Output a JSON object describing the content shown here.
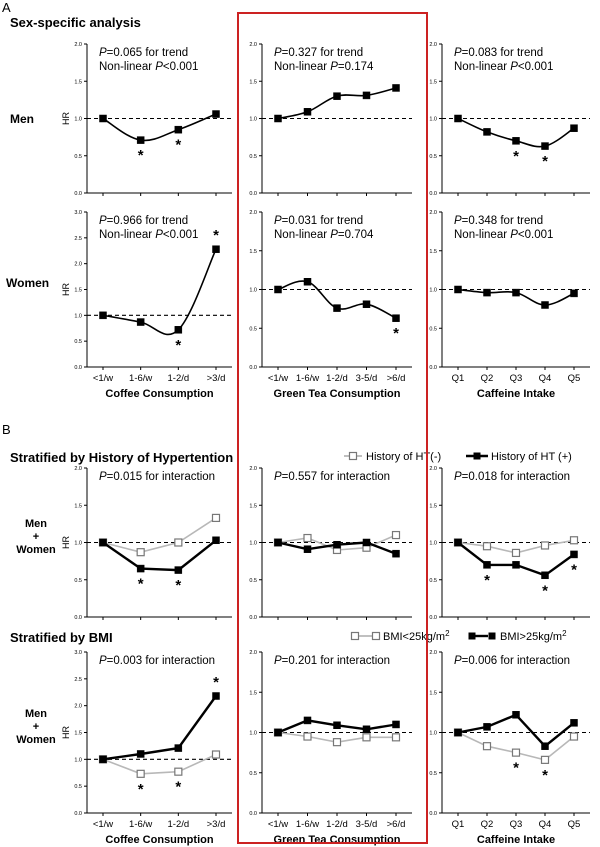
{
  "figure": {
    "panel_a_label": "A",
    "panel_b_label": "B",
    "section_a_title": "Sex-specific analysis",
    "section_b1_title": "Stratified by History of Hypertention",
    "section_b2_title": "Stratified by BMI",
    "row_labels": {
      "men": "Men",
      "women": "Women",
      "men_women_line1": "Men",
      "men_women_line2": "+",
      "men_women_line3": "Women"
    },
    "y_label": "HR",
    "y_ticks": [
      "0.0",
      "0.5",
      "1.0",
      "1.5",
      "2.0"
    ],
    "y_ticks_tall": [
      "0.0",
      "0.5",
      "1.0",
      "1.5",
      "2.0",
      "2.5",
      "3.0"
    ],
    "x_titles": {
      "coffee": "Coffee Consumption",
      "tea": "Green Tea Consumption",
      "caffeine": "Caffeine Intake"
    },
    "x_ticks": {
      "coffee": [
        "<1/w",
        "1-6/w",
        "1-2/d",
        ">3/d"
      ],
      "tea": [
        "<1/w",
        "1-6/w",
        "1-2/d",
        "3-5/d",
        ">6/d"
      ],
      "caffeine": [
        "Q1",
        "Q2",
        "Q3",
        "Q4",
        "Q5"
      ]
    },
    "legend_ht": {
      "neg": "History of HT(-)",
      "pos": "History of HT (+)"
    },
    "legend_bmi": {
      "low_prefix": "BMI<25kg/m",
      "high_prefix": "BMI>25kg/m",
      "sup": "2"
    },
    "star": "*"
  },
  "chart_data": [
    {
      "id": "a-men-coffee",
      "type": "line",
      "section": "A",
      "row": "Men",
      "x_key": "coffee",
      "ylim": [
        0,
        2
      ],
      "annotation": {
        "p_prefix": "P",
        "p_value": "=0.065 for trend",
        "nl_text": "Non-linear ",
        "nl_p": "P",
        "nl_value": "<0.001"
      },
      "categories": [
        "<1/w",
        "1-6/w",
        "1-2/d",
        ">3/d"
      ],
      "series": [
        {
          "values": [
            1.0,
            0.71,
            0.85,
            1.06
          ],
          "marker": "filled-square",
          "curve": "smooth",
          "stars": [
            1,
            2
          ]
        }
      ]
    },
    {
      "id": "a-men-tea",
      "type": "line",
      "section": "A",
      "row": "Men",
      "x_key": "tea",
      "ylim": [
        0,
        2
      ],
      "annotation": {
        "p_prefix": "P",
        "p_value": "=0.327 for trend",
        "nl_text": "Non-linear ",
        "nl_p": "P",
        "nl_value": "=0.174"
      },
      "categories": [
        "<1/w",
        "1-6/w",
        "1-2/d",
        "3-5/d",
        ">6/d"
      ],
      "series": [
        {
          "values": [
            1.0,
            1.09,
            1.3,
            1.31,
            1.41
          ],
          "marker": "filled-square",
          "curve": "smooth",
          "stars": []
        }
      ]
    },
    {
      "id": "a-men-caffeine",
      "type": "line",
      "section": "A",
      "row": "Men",
      "x_key": "caffeine",
      "ylim": [
        0,
        2
      ],
      "annotation": {
        "p_prefix": "P",
        "p_value": "=0.083 for trend",
        "nl_text": "Non-linear ",
        "nl_p": "P",
        "nl_value": "<0.001"
      },
      "categories": [
        "Q1",
        "Q2",
        "Q3",
        "Q4",
        "Q5"
      ],
      "series": [
        {
          "values": [
            1.0,
            0.82,
            0.7,
            0.63,
            0.87
          ],
          "marker": "filled-square",
          "curve": "smooth",
          "stars": [
            2,
            3
          ]
        }
      ]
    },
    {
      "id": "a-women-coffee",
      "type": "line",
      "section": "A",
      "row": "Women",
      "x_key": "coffee",
      "ylim": [
        0,
        3
      ],
      "annotation": {
        "p_prefix": "P",
        "p_value": "=0.966 for trend",
        "nl_text": "Non-linear ",
        "nl_p": "P",
        "nl_value": "<0.001"
      },
      "categories": [
        "<1/w",
        "1-6/w",
        "1-2/d",
        ">3/d"
      ],
      "series": [
        {
          "values": [
            1.0,
            0.87,
            0.72,
            2.28
          ],
          "marker": "filled-square",
          "curve": "smooth",
          "stars": [
            2,
            3
          ]
        }
      ]
    },
    {
      "id": "a-women-tea",
      "type": "line",
      "section": "A",
      "row": "Women",
      "x_key": "tea",
      "ylim": [
        0,
        2
      ],
      "annotation": {
        "p_prefix": "P",
        "p_value": "=0.031 for trend",
        "nl_text": "Non-linear ",
        "nl_p": "P",
        "nl_value": "=0.704"
      },
      "categories": [
        "<1/w",
        "1-6/w",
        "1-2/d",
        "3-5/d",
        ">6/d"
      ],
      "series": [
        {
          "values": [
            1.0,
            1.1,
            0.76,
            0.81,
            0.63
          ],
          "marker": "filled-square",
          "curve": "smooth",
          "stars": [
            4
          ]
        }
      ]
    },
    {
      "id": "a-women-caffeine",
      "type": "line",
      "section": "A",
      "row": "Women",
      "x_key": "caffeine",
      "ylim": [
        0,
        2
      ],
      "annotation": {
        "p_prefix": "P",
        "p_value": "=0.348 for trend",
        "nl_text": "Non-linear ",
        "nl_p": "P",
        "nl_value": "<0.001"
      },
      "categories": [
        "Q1",
        "Q2",
        "Q3",
        "Q4",
        "Q5"
      ],
      "series": [
        {
          "values": [
            1.0,
            0.96,
            0.96,
            0.8,
            0.95
          ],
          "marker": "filled-square",
          "curve": "smooth",
          "stars": []
        }
      ]
    },
    {
      "id": "b-ht-coffee",
      "type": "line",
      "section": "B",
      "row": "Men + Women",
      "x_key": "coffee",
      "ylim": [
        0,
        2
      ],
      "annotation": {
        "p_prefix": "P",
        "p_value": "=0.015 for interaction"
      },
      "categories": [
        "<1/w",
        "1-6/w",
        "1-2/d",
        ">3/d"
      ],
      "series": [
        {
          "values": [
            1.0,
            0.87,
            1.0,
            1.33
          ],
          "marker": "open-square",
          "stars": []
        },
        {
          "values": [
            1.0,
            0.65,
            0.63,
            1.03
          ],
          "marker": "filled-square",
          "stars": [
            1,
            2
          ]
        }
      ]
    },
    {
      "id": "b-ht-tea",
      "type": "line",
      "section": "B",
      "row": "Men + Women",
      "x_key": "tea",
      "ylim": [
        0,
        2
      ],
      "annotation": {
        "p_prefix": "P",
        "p_value": "=0.557 for interaction"
      },
      "categories": [
        "<1/w",
        "1-6/w",
        "1-2/d",
        "3-5/d",
        ">6/d"
      ],
      "series": [
        {
          "values": [
            1.0,
            1.06,
            0.9,
            0.93,
            1.1
          ],
          "marker": "open-square",
          "stars": []
        },
        {
          "values": [
            1.0,
            0.91,
            0.97,
            1.0,
            0.85
          ],
          "marker": "filled-square",
          "stars": []
        }
      ]
    },
    {
      "id": "b-ht-caffeine",
      "type": "line",
      "section": "B",
      "row": "Men + Women",
      "x_key": "caffeine",
      "ylim": [
        0,
        2
      ],
      "annotation": {
        "p_prefix": "P",
        "p_value": "=0.018 for interaction"
      },
      "categories": [
        "Q1",
        "Q2",
        "Q3",
        "Q4",
        "Q5"
      ],
      "series": [
        {
          "values": [
            1.0,
            0.95,
            0.86,
            0.96,
            1.03
          ],
          "marker": "open-square",
          "stars": []
        },
        {
          "values": [
            1.0,
            0.7,
            0.7,
            0.56,
            0.84
          ],
          "marker": "filled-square",
          "stars": [
            1,
            3,
            4
          ]
        }
      ]
    },
    {
      "id": "b-bmi-coffee",
      "type": "line",
      "section": "B",
      "row": "Men + Women",
      "x_key": "coffee",
      "ylim": [
        0,
        3
      ],
      "annotation": {
        "p_prefix": "P",
        "p_value": "=0.003 for interaction"
      },
      "categories": [
        "<1/w",
        "1-6/w",
        "1-2/d",
        ">3/d"
      ],
      "series": [
        {
          "values": [
            1.0,
            0.73,
            0.77,
            1.09
          ],
          "marker": "open-square",
          "stars": [
            1,
            2
          ]
        },
        {
          "values": [
            1.0,
            1.1,
            1.21,
            2.18
          ],
          "marker": "filled-square",
          "stars": [
            3
          ]
        }
      ]
    },
    {
      "id": "b-bmi-tea",
      "type": "line",
      "section": "B",
      "row": "Men + Women",
      "x_key": "tea",
      "ylim": [
        0,
        2
      ],
      "annotation": {
        "p_prefix": "P",
        "p_value": "=0.201 for interaction"
      },
      "categories": [
        "<1/w",
        "1-6/w",
        "1-2/d",
        "3-5/d",
        ">6/d"
      ],
      "series": [
        {
          "values": [
            1.0,
            0.95,
            0.88,
            0.94,
            0.94
          ],
          "marker": "open-square",
          "stars": []
        },
        {
          "values": [
            1.0,
            1.15,
            1.09,
            1.04,
            1.1
          ],
          "marker": "filled-square",
          "stars": []
        }
      ]
    },
    {
      "id": "b-bmi-caffeine",
      "type": "line",
      "section": "B",
      "row": "Men + Women",
      "x_key": "caffeine",
      "ylim": [
        0,
        2
      ],
      "annotation": {
        "p_prefix": "P",
        "p_value": "=0.006 for interaction"
      },
      "categories": [
        "Q1",
        "Q2",
        "Q3",
        "Q4",
        "Q5"
      ],
      "series": [
        {
          "values": [
            1.0,
            0.83,
            0.75,
            0.66,
            0.95
          ],
          "marker": "open-square",
          "stars": [
            2,
            3
          ]
        },
        {
          "values": [
            1.0,
            1.07,
            1.22,
            0.83,
            1.12
          ],
          "marker": "filled-square",
          "stars": []
        }
      ]
    }
  ]
}
